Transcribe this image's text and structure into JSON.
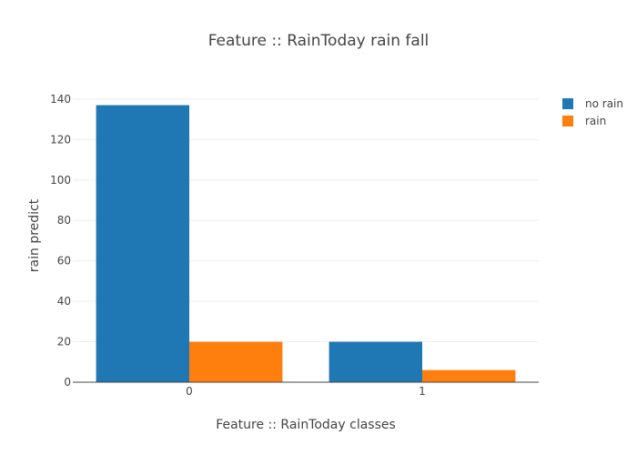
{
  "chart_data": {
    "type": "bar",
    "title": "Feature :: RainToday rain fall",
    "xlabel": "Feature :: RainToday classes",
    "ylabel": "rain predict",
    "categories": [
      "0",
      "1"
    ],
    "series": [
      {
        "name": "no rain",
        "values": [
          137,
          20
        ],
        "color": "#1f77b4"
      },
      {
        "name": "rain",
        "values": [
          20,
          6
        ],
        "color": "#ff7f0e"
      }
    ],
    "ylim": [
      0,
      144
    ],
    "yticks": [
      0,
      20,
      40,
      60,
      80,
      100,
      120,
      140
    ],
    "grid": true,
    "legend_position": "top-right"
  }
}
